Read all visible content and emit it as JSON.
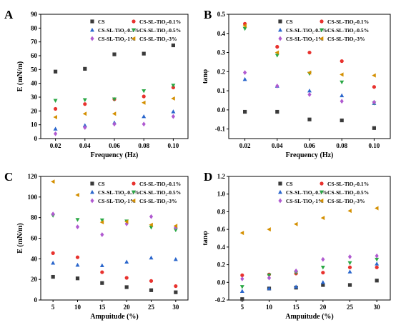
{
  "chart_data": [
    {
      "type": "scatter",
      "panel_label": "A",
      "xlabel": "Frequency (Hz)",
      "ylabel": "E (mN/m)",
      "xlim": [
        0.01,
        0.11
      ],
      "ylim": [
        0,
        90
      ],
      "xticks": [
        0.02,
        0.04,
        0.06,
        0.08,
        0.1
      ],
      "xtick_labels": [
        "0.02",
        "0.04",
        "0.06",
        "0.08",
        "0.10"
      ],
      "yticks": [
        0,
        10,
        20,
        30,
        40,
        50,
        60,
        70,
        80,
        90
      ],
      "yticklabels": [
        "0",
        "10",
        "20",
        "30",
        "40",
        "50",
        "60",
        "70",
        "80",
        "90"
      ],
      "legend_position": "top",
      "x": [
        0.02,
        0.04,
        0.06,
        0.08,
        0.1
      ],
      "series": [
        {
          "name": "CS",
          "color": "#3a3a3a",
          "marker": "square",
          "values": [
            48.5,
            50.5,
            61,
            61.5,
            67.5
          ]
        },
        {
          "name": "CS-SL-TiO₂-0.1%",
          "color": "#e8322e",
          "marker": "circle",
          "values": [
            21.5,
            25,
            28.5,
            30.5,
            37
          ]
        },
        {
          "name": "CS-SL-TiO₂-0.3%",
          "color": "#2a66cc",
          "marker": "triangle-up",
          "values": [
            7,
            9.5,
            11.5,
            16,
            19.5
          ]
        },
        {
          "name": "CS-SL-TiO₂-0.5%",
          "color": "#2aa845",
          "marker": "triangle-down",
          "values": [
            27.5,
            28,
            28.5,
            34.5,
            38.5
          ]
        },
        {
          "name": "CS-SL-TiO₂-1%",
          "color": "#b05ad0",
          "marker": "diamond",
          "values": [
            3.5,
            8,
            10.5,
            10.5,
            16
          ]
        },
        {
          "name": "CS-SL-TiO₂-3%",
          "color": "#d48f00",
          "marker": "triangle-left",
          "values": [
            15.5,
            18,
            18,
            26,
            29
          ]
        }
      ]
    },
    {
      "type": "scatter",
      "panel_label": "B",
      "xlabel": "Frequency (Hz)",
      "ylabel": "tanφ",
      "xlim": [
        0.01,
        0.11
      ],
      "ylim": [
        -0.15,
        0.5
      ],
      "xticks": [
        0.02,
        0.04,
        0.06,
        0.08,
        0.1
      ],
      "xtick_labels": [
        "0.02",
        "0.04",
        "0.06",
        "0.08",
        "0.10"
      ],
      "yticks": [
        -0.1,
        0.0,
        0.1,
        0.2,
        0.3,
        0.4,
        0.5
      ],
      "yticklabels": [
        "-0.1",
        "0.0",
        "0.1",
        "0.2",
        "0.3",
        "0.4",
        "0.5"
      ],
      "legend_position": "top",
      "x": [
        0.02,
        0.04,
        0.06,
        0.08,
        0.1
      ],
      "series": [
        {
          "name": "CS",
          "color": "#3a3a3a",
          "marker": "square",
          "values": [
            -0.01,
            -0.01,
            -0.05,
            -0.055,
            -0.095
          ]
        },
        {
          "name": "CS-SL-TiO₂-0.1%",
          "color": "#e8322e",
          "marker": "circle",
          "values": [
            0.45,
            0.33,
            0.3,
            0.255,
            0.12
          ]
        },
        {
          "name": "CS-SL-TiO₂-0.3%",
          "color": "#2a66cc",
          "marker": "triangle-up",
          "values": [
            0.16,
            0.125,
            0.1,
            0.075,
            0.035
          ]
        },
        {
          "name": "CS-SL-TiO₂-0.5%",
          "color": "#2aa845",
          "marker": "triangle-down",
          "values": [
            0.425,
            0.285,
            0.19,
            0.145,
            0.035
          ]
        },
        {
          "name": "CS-SL-TiO₂-1%",
          "color": "#b05ad0",
          "marker": "diamond",
          "values": [
            0.195,
            0.125,
            0.08,
            0.045,
            0.04
          ]
        },
        {
          "name": "CS-SL-TiO₂-3%",
          "color": "#d48f00",
          "marker": "triangle-left",
          "values": [
            0.44,
            0.3,
            0.195,
            0.185,
            0.18
          ]
        }
      ]
    },
    {
      "type": "scatter",
      "panel_label": "C",
      "xlabel": "Ampuitude (%)",
      "ylabel": "E (mN/m)",
      "xlim": [
        2.5,
        32.5
      ],
      "ylim": [
        0,
        120
      ],
      "xticks": [
        5,
        10,
        15,
        20,
        25,
        30
      ],
      "xtick_labels": [
        "5",
        "10",
        "15",
        "20",
        "25",
        "30"
      ],
      "yticks": [
        0,
        20,
        40,
        60,
        80,
        100,
        120
      ],
      "yticklabels": [
        "0",
        "20",
        "40",
        "60",
        "80",
        "100",
        "120"
      ],
      "legend_position": "top",
      "x": [
        5,
        10,
        15,
        20,
        25,
        30
      ],
      "series": [
        {
          "name": "CS",
          "color": "#3a3a3a",
          "marker": "square",
          "values": [
            22.5,
            21,
            16.5,
            12.5,
            9.5,
            7.5
          ]
        },
        {
          "name": "CS-SL-TiO₂-0.1%",
          "color": "#e8322e",
          "marker": "circle",
          "values": [
            45.5,
            41.5,
            27,
            21.5,
            18.5,
            13.5
          ]
        },
        {
          "name": "CS-SL-TiO₂-0.3%",
          "color": "#2a66cc",
          "marker": "triangle-up",
          "values": [
            36,
            34,
            33.5,
            37,
            41,
            39.5
          ]
        },
        {
          "name": "CS-SL-TiO₂-0.5%",
          "color": "#2aa845",
          "marker": "triangle-down",
          "values": [
            82,
            78,
            77.5,
            76.5,
            70.5,
            68
          ]
        },
        {
          "name": "CS-SL-TiO₂-1%",
          "color": "#b05ad0",
          "marker": "diamond",
          "values": [
            83.5,
            71,
            63.5,
            74,
            81,
            70.5
          ]
        },
        {
          "name": "CS-SL-TiO₂-3%",
          "color": "#d48f00",
          "marker": "triangle-left",
          "values": [
            115,
            102,
            75.5,
            76,
            73,
            72
          ]
        }
      ]
    },
    {
      "type": "scatter",
      "panel_label": "D",
      "xlabel": "Ampuitude (%)",
      "ylabel": "tanφ",
      "xlim": [
        2.5,
        32.5
      ],
      "ylim": [
        -0.2,
        1.2
      ],
      "xticks": [
        5,
        10,
        15,
        20,
        25,
        30
      ],
      "xtick_labels": [
        "5",
        "10",
        "15",
        "20",
        "25",
        "30"
      ],
      "yticks": [
        -0.2,
        0.0,
        0.2,
        0.4,
        0.6,
        0.8,
        1.0,
        1.2
      ],
      "yticklabels": [
        "-0.2",
        "0.0",
        "0.2",
        "0.4",
        "0.6",
        "0.8",
        "1.0",
        "1.2"
      ],
      "legend_position": "top",
      "x": [
        5,
        10,
        15,
        20,
        25,
        30
      ],
      "series": [
        {
          "name": "CS",
          "color": "#3a3a3a",
          "marker": "square",
          "values": [
            -0.19,
            -0.07,
            -0.06,
            -0.03,
            -0.03,
            0.02
          ]
        },
        {
          "name": "CS-SL-TiO₂-0.1%",
          "color": "#e8322e",
          "marker": "circle",
          "values": [
            0.08,
            0.09,
            0.1,
            0.11,
            0.17,
            0.17
          ]
        },
        {
          "name": "CS-SL-TiO₂-0.3%",
          "color": "#2a66cc",
          "marker": "triangle-up",
          "values": [
            -0.1,
            -0.07,
            -0.05,
            0.0,
            0.12,
            0.21
          ]
        },
        {
          "name": "CS-SL-TiO₂-0.5%",
          "color": "#2aa845",
          "marker": "triangle-down",
          "values": [
            -0.05,
            0.08,
            0.11,
            0.17,
            0.22,
            0.26
          ]
        },
        {
          "name": "CS-SL-TiO₂-1%",
          "color": "#b05ad0",
          "marker": "diamond",
          "values": [
            0.04,
            0.05,
            0.13,
            0.26,
            0.29,
            0.3
          ]
        },
        {
          "name": "CS-SL-TiO₂-3%",
          "color": "#d48f00",
          "marker": "triangle-left",
          "values": [
            0.56,
            0.6,
            0.66,
            0.73,
            0.81,
            0.84
          ]
        }
      ]
    }
  ]
}
